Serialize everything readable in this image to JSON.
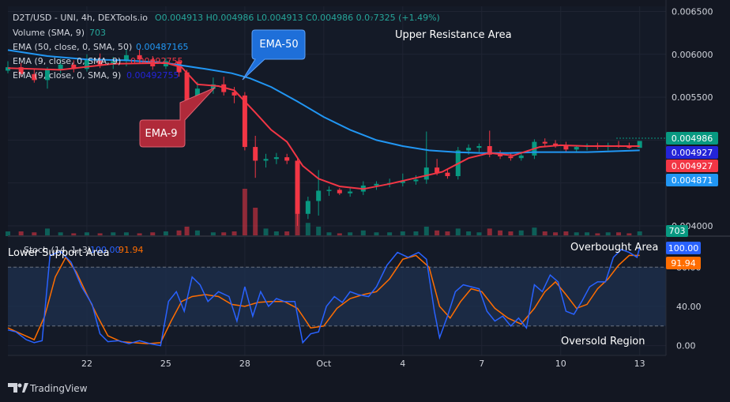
{
  "header": {
    "symbol": "D2T/USD - UNI, 4h, DEXTools.io",
    "ohlc": "O0.004913  H0.004986  L0.004913  C0.004986  0.0₇7325 (+1.49%)",
    "volume": "Volume (SMA, 9)",
    "volume_val": "703",
    "ema50": "EMA (50, close, 0, SMA, 50)",
    "ema50_val": "0.00487165",
    "ema9a": "EMA (9, close, 0, SMA, 9)",
    "ema9a_val": "0.00492755",
    "ema9b": "EMA (9, close, 0, SMA, 9)",
    "ema9b_val": "0.00492755"
  },
  "annotations": {
    "ema50": "EMA-50",
    "ema9": "EMA-9",
    "upper": "Upper Resistance Area",
    "lower": "Lower Support Area",
    "overbought": "Overbought Area",
    "oversold": "Oversold Region"
  },
  "stoch_header": {
    "label": "Stoch (14, 1, 3)",
    "k": "100.00",
    "d": "91.94"
  },
  "price_badges": [
    {
      "text": "0.004986",
      "value": 0.004986,
      "color": "#089981"
    },
    {
      "text": "0.004927",
      "value": 0.004927,
      "color": "#2424d8"
    },
    {
      "text": "0.004927",
      "value": 0.004927,
      "color": "#f23645"
    },
    {
      "text": "0.004871",
      "value": 0.004871,
      "color": "#2196f3"
    }
  ],
  "volume_badge": {
    "text": "703",
    "color": "#089981"
  },
  "stoch_badges": [
    {
      "text": "100.00",
      "value": 100,
      "color": "#2962ff"
    },
    {
      "text": "91.94",
      "value": 91.94,
      "color": "#ff6d00"
    }
  ],
  "brand": "TradingView",
  "colors": {
    "up": "#089981",
    "down": "#f23645",
    "ema9": "#f23645",
    "ema50": "#2196f3",
    "stochK": "#2962ff",
    "stochD": "#ff6d00"
  },
  "chart_data": {
    "type": "line",
    "price_axis": {
      "ticks": [
        0.0065,
        0.006,
        0.0055,
        0.005,
        0.0045,
        0.004
      ],
      "labels": [
        "0.006500",
        "0.006000",
        "0.005500",
        "0.005000",
        "0.004500",
        "0.004000"
      ],
      "min": 0.00388,
      "max": 0.00656
    },
    "stoch_axis": {
      "ticks": [
        80,
        40,
        0
      ],
      "labels": [
        "80.00",
        "40.00",
        "0.00"
      ],
      "bands": [
        80,
        20
      ],
      "min": -10,
      "max": 110
    },
    "x_axis": {
      "min": 19,
      "max": 44,
      "ticks": [
        22,
        25,
        28,
        31,
        34,
        37,
        40,
        43
      ],
      "labels": [
        "22",
        "25",
        "28",
        "Oct",
        "4",
        "7",
        "10",
        "13"
      ]
    },
    "candles": [
      {
        "d": 19.0,
        "o": 0.00581,
        "h": 0.00592,
        "l": 0.00578,
        "c": 0.00585,
        "v": 0.05
      },
      {
        "d": 19.5,
        "o": 0.00585,
        "h": 0.0059,
        "l": 0.00574,
        "c": 0.00577,
        "v": 0.05
      },
      {
        "d": 20.0,
        "o": 0.00577,
        "h": 0.00583,
        "l": 0.00567,
        "c": 0.0057,
        "v": 0.04
      },
      {
        "d": 20.5,
        "o": 0.0057,
        "h": 0.00585,
        "l": 0.0056,
        "c": 0.00582,
        "v": 0.08
      },
      {
        "d": 21.0,
        "o": 0.00582,
        "h": 0.00595,
        "l": 0.00578,
        "c": 0.00588,
        "v": 0.04
      },
      {
        "d": 21.5,
        "o": 0.00588,
        "h": 0.00593,
        "l": 0.00579,
        "c": 0.00583,
        "v": 0.03
      },
      {
        "d": 22.0,
        "o": 0.00583,
        "h": 0.006,
        "l": 0.0058,
        "c": 0.00594,
        "v": 0.04
      },
      {
        "d": 22.5,
        "o": 0.00594,
        "h": 0.00601,
        "l": 0.00584,
        "c": 0.00588,
        "v": 0.03
      },
      {
        "d": 23.0,
        "o": 0.00588,
        "h": 0.00597,
        "l": 0.00583,
        "c": 0.00592,
        "v": 0.04
      },
      {
        "d": 23.5,
        "o": 0.00592,
        "h": 0.00606,
        "l": 0.00586,
        "c": 0.00599,
        "v": 0.04
      },
      {
        "d": 24.0,
        "o": 0.00599,
        "h": 0.00606,
        "l": 0.0059,
        "c": 0.00594,
        "v": 0.03
      },
      {
        "d": 24.5,
        "o": 0.00594,
        "h": 0.00598,
        "l": 0.00582,
        "c": 0.00586,
        "v": 0.04
      },
      {
        "d": 25.0,
        "o": 0.00586,
        "h": 0.00596,
        "l": 0.00583,
        "c": 0.00592,
        "v": 0.05
      },
      {
        "d": 25.5,
        "o": 0.00592,
        "h": 0.00594,
        "l": 0.00574,
        "c": 0.00579,
        "v": 0.06
      },
      {
        "d": 25.8,
        "o": 0.00579,
        "h": 0.00582,
        "l": 0.00532,
        "c": 0.00545,
        "v": 0.1
      },
      {
        "d": 26.2,
        "o": 0.00545,
        "h": 0.00568,
        "l": 0.00541,
        "c": 0.0056,
        "v": 0.06
      },
      {
        "d": 26.8,
        "o": 0.0056,
        "h": 0.00573,
        "l": 0.00554,
        "c": 0.00565,
        "v": 0.04
      },
      {
        "d": 27.2,
        "o": 0.00565,
        "h": 0.00574,
        "l": 0.00552,
        "c": 0.00556,
        "v": 0.04
      },
      {
        "d": 27.6,
        "o": 0.00556,
        "h": 0.00562,
        "l": 0.00543,
        "c": 0.00552,
        "v": 0.05
      },
      {
        "d": 28.0,
        "o": 0.00552,
        "h": 0.00556,
        "l": 0.00488,
        "c": 0.00492,
        "v": 0.5
      },
      {
        "d": 28.4,
        "o": 0.00492,
        "h": 0.00505,
        "l": 0.00456,
        "c": 0.00476,
        "v": 0.3
      },
      {
        "d": 28.8,
        "o": 0.00476,
        "h": 0.00484,
        "l": 0.00468,
        "c": 0.00478,
        "v": 0.08
      },
      {
        "d": 29.2,
        "o": 0.00478,
        "h": 0.00485,
        "l": 0.00472,
        "c": 0.0048,
        "v": 0.05
      },
      {
        "d": 29.6,
        "o": 0.0048,
        "h": 0.00484,
        "l": 0.00472,
        "c": 0.00476,
        "v": 0.05
      },
      {
        "d": 30.0,
        "o": 0.00476,
        "h": 0.0048,
        "l": 0.004,
        "c": 0.00414,
        "v": 0.42
      },
      {
        "d": 30.4,
        "o": 0.00414,
        "h": 0.00434,
        "l": 0.00408,
        "c": 0.00429,
        "v": 0.14
      },
      {
        "d": 30.8,
        "o": 0.00429,
        "h": 0.00465,
        "l": 0.00412,
        "c": 0.00441,
        "v": 0.1
      },
      {
        "d": 31.2,
        "o": 0.00441,
        "h": 0.00446,
        "l": 0.00435,
        "c": 0.00442,
        "v": 0.04
      },
      {
        "d": 31.6,
        "o": 0.00442,
        "h": 0.00444,
        "l": 0.00436,
        "c": 0.00438,
        "v": 0.03
      },
      {
        "d": 32.0,
        "o": 0.00438,
        "h": 0.00444,
        "l": 0.00434,
        "c": 0.0044,
        "v": 0.04
      },
      {
        "d": 32.5,
        "o": 0.0044,
        "h": 0.00452,
        "l": 0.00436,
        "c": 0.00447,
        "v": 0.06
      },
      {
        "d": 33.0,
        "o": 0.00447,
        "h": 0.00452,
        "l": 0.00442,
        "c": 0.00449,
        "v": 0.04
      },
      {
        "d": 33.5,
        "o": 0.00449,
        "h": 0.00455,
        "l": 0.00445,
        "c": 0.0045,
        "v": 0.04
      },
      {
        "d": 34.0,
        "o": 0.0045,
        "h": 0.00461,
        "l": 0.00446,
        "c": 0.00452,
        "v": 0.05
      },
      {
        "d": 34.5,
        "o": 0.00452,
        "h": 0.00459,
        "l": 0.00448,
        "c": 0.00454,
        "v": 0.05
      },
      {
        "d": 34.9,
        "o": 0.00454,
        "h": 0.0051,
        "l": 0.00449,
        "c": 0.00468,
        "v": 0.1
      },
      {
        "d": 35.3,
        "o": 0.00468,
        "h": 0.00478,
        "l": 0.00459,
        "c": 0.00462,
        "v": 0.06
      },
      {
        "d": 35.7,
        "o": 0.00462,
        "h": 0.00466,
        "l": 0.00455,
        "c": 0.00458,
        "v": 0.05
      },
      {
        "d": 36.1,
        "o": 0.00458,
        "h": 0.00492,
        "l": 0.00454,
        "c": 0.00488,
        "v": 0.08
      },
      {
        "d": 36.5,
        "o": 0.00488,
        "h": 0.00495,
        "l": 0.00483,
        "c": 0.00491,
        "v": 0.05
      },
      {
        "d": 36.9,
        "o": 0.00491,
        "h": 0.00496,
        "l": 0.00486,
        "c": 0.00493,
        "v": 0.04
      },
      {
        "d": 37.3,
        "o": 0.00493,
        "h": 0.00511,
        "l": 0.0048,
        "c": 0.00483,
        "v": 0.08
      },
      {
        "d": 37.7,
        "o": 0.00483,
        "h": 0.00488,
        "l": 0.00478,
        "c": 0.00481,
        "v": 0.06
      },
      {
        "d": 38.1,
        "o": 0.00481,
        "h": 0.00485,
        "l": 0.00476,
        "c": 0.00479,
        "v": 0.05
      },
      {
        "d": 38.5,
        "o": 0.00479,
        "h": 0.00486,
        "l": 0.00476,
        "c": 0.00482,
        "v": 0.06
      },
      {
        "d": 39.0,
        "o": 0.00482,
        "h": 0.00501,
        "l": 0.00478,
        "c": 0.00498,
        "v": 0.09
      },
      {
        "d": 39.4,
        "o": 0.00498,
        "h": 0.00502,
        "l": 0.00492,
        "c": 0.00496,
        "v": 0.05
      },
      {
        "d": 39.8,
        "o": 0.00496,
        "h": 0.005,
        "l": 0.00491,
        "c": 0.00494,
        "v": 0.04
      },
      {
        "d": 40.2,
        "o": 0.00494,
        "h": 0.00498,
        "l": 0.00486,
        "c": 0.00489,
        "v": 0.05
      },
      {
        "d": 40.6,
        "o": 0.00489,
        "h": 0.00494,
        "l": 0.00486,
        "c": 0.00492,
        "v": 0.04
      },
      {
        "d": 41.0,
        "o": 0.00492,
        "h": 0.00496,
        "l": 0.00488,
        "c": 0.00494,
        "v": 0.04
      },
      {
        "d": 41.4,
        "o": 0.00494,
        "h": 0.00497,
        "l": 0.00489,
        "c": 0.00492,
        "v": 0.03
      },
      {
        "d": 41.8,
        "o": 0.00492,
        "h": 0.00497,
        "l": 0.00488,
        "c": 0.00494,
        "v": 0.04
      },
      {
        "d": 42.2,
        "o": 0.00494,
        "h": 0.00499,
        "l": 0.00491,
        "c": 0.00493,
        "v": 0.04
      },
      {
        "d": 42.6,
        "o": 0.00493,
        "h": 0.00497,
        "l": 0.0049,
        "c": 0.00491,
        "v": 0.03
      },
      {
        "d": 43.0,
        "o": 0.00491,
        "h": 0.00499,
        "l": 0.00491,
        "c": 0.00499,
        "v": 0.05
      }
    ],
    "ema9": [
      [
        19,
        0.00584
      ],
      [
        21,
        0.00582
      ],
      [
        23,
        0.00589
      ],
      [
        25,
        0.0059
      ],
      [
        25.6,
        0.00585
      ],
      [
        26.2,
        0.00565
      ],
      [
        27,
        0.00563
      ],
      [
        27.6,
        0.00558
      ],
      [
        28.4,
        0.00532
      ],
      [
        29,
        0.00512
      ],
      [
        29.6,
        0.00498
      ],
      [
        30.2,
        0.0047
      ],
      [
        30.8,
        0.00455
      ],
      [
        31.6,
        0.00446
      ],
      [
        32.5,
        0.00443
      ],
      [
        33.5,
        0.00449
      ],
      [
        34.5,
        0.00456
      ],
      [
        35.5,
        0.00463
      ],
      [
        36.5,
        0.00479
      ],
      [
        37.3,
        0.00485
      ],
      [
        38.2,
        0.00482
      ],
      [
        39.2,
        0.00492
      ],
      [
        40,
        0.00494
      ],
      [
        41,
        0.00493
      ],
      [
        42,
        0.00493
      ],
      [
        43,
        0.00493
      ]
    ],
    "ema50": [
      [
        19,
        0.00605
      ],
      [
        20.5,
        0.00598
      ],
      [
        22,
        0.00594
      ],
      [
        23.5,
        0.00593
      ],
      [
        25,
        0.0059
      ],
      [
        26.5,
        0.00583
      ],
      [
        27.5,
        0.00578
      ],
      [
        28.2,
        0.00572
      ],
      [
        29,
        0.00562
      ],
      [
        30,
        0.00545
      ],
      [
        31,
        0.00527
      ],
      [
        32,
        0.00512
      ],
      [
        33,
        0.005
      ],
      [
        34,
        0.00493
      ],
      [
        35,
        0.00488
      ],
      [
        36,
        0.00486
      ],
      [
        37,
        0.00485
      ],
      [
        38,
        0.00485
      ],
      [
        39,
        0.00486
      ],
      [
        40,
        0.00486
      ],
      [
        41,
        0.00486
      ],
      [
        42,
        0.00487
      ],
      [
        43,
        0.00488
      ]
    ],
    "stoch_k": [
      [
        19,
        16
      ],
      [
        19.3,
        14
      ],
      [
        19.7,
        6
      ],
      [
        20,
        3
      ],
      [
        20.3,
        5
      ],
      [
        20.6,
        92
      ],
      [
        21,
        96
      ],
      [
        21.4,
        85
      ],
      [
        21.8,
        60
      ],
      [
        22.2,
        42
      ],
      [
        22.5,
        12
      ],
      [
        22.8,
        4
      ],
      [
        23.2,
        5
      ],
      [
        23.6,
        2
      ],
      [
        24,
        5
      ],
      [
        24.4,
        2
      ],
      [
        24.8,
        0
      ],
      [
        25.1,
        45
      ],
      [
        25.4,
        55
      ],
      [
        25.7,
        35
      ],
      [
        26,
        70
      ],
      [
        26.3,
        62
      ],
      [
        26.6,
        45
      ],
      [
        27,
        55
      ],
      [
        27.4,
        50
      ],
      [
        27.7,
        25
      ],
      [
        28,
        60
      ],
      [
        28.3,
        30
      ],
      [
        28.6,
        55
      ],
      [
        28.9,
        40
      ],
      [
        29.2,
        48
      ],
      [
        29.5,
        45
      ],
      [
        29.9,
        45
      ],
      [
        30.2,
        3
      ],
      [
        30.5,
        12
      ],
      [
        30.8,
        14
      ],
      [
        31.1,
        40
      ],
      [
        31.4,
        50
      ],
      [
        31.7,
        44
      ],
      [
        32,
        55
      ],
      [
        32.3,
        52
      ],
      [
        32.7,
        50
      ],
      [
        33,
        60
      ],
      [
        33.4,
        82
      ],
      [
        33.8,
        95
      ],
      [
        34.2,
        90
      ],
      [
        34.6,
        95
      ],
      [
        34.9,
        88
      ],
      [
        35.2,
        35
      ],
      [
        35.4,
        8
      ],
      [
        35.7,
        30
      ],
      [
        36,
        55
      ],
      [
        36.3,
        62
      ],
      [
        36.6,
        60
      ],
      [
        36.9,
        58
      ],
      [
        37.2,
        35
      ],
      [
        37.5,
        25
      ],
      [
        37.8,
        30
      ],
      [
        38.1,
        20
      ],
      [
        38.4,
        28
      ],
      [
        38.7,
        18
      ],
      [
        39,
        62
      ],
      [
        39.3,
        55
      ],
      [
        39.6,
        72
      ],
      [
        39.9,
        65
      ],
      [
        40.2,
        35
      ],
      [
        40.5,
        32
      ],
      [
        40.8,
        45
      ],
      [
        41.1,
        60
      ],
      [
        41.4,
        65
      ],
      [
        41.7,
        65
      ],
      [
        42,
        90
      ],
      [
        42.3,
        98
      ],
      [
        42.6,
        95
      ],
      [
        42.9,
        90
      ],
      [
        43,
        100
      ]
    ],
    "stoch_d": [
      [
        19,
        18
      ],
      [
        19.5,
        12
      ],
      [
        20,
        6
      ],
      [
        20.4,
        30
      ],
      [
        20.8,
        70
      ],
      [
        21.2,
        90
      ],
      [
        21.6,
        75
      ],
      [
        22,
        52
      ],
      [
        22.4,
        30
      ],
      [
        22.8,
        10
      ],
      [
        23.3,
        4
      ],
      [
        23.8,
        3
      ],
      [
        24.3,
        2
      ],
      [
        24.8,
        3
      ],
      [
        25.2,
        25
      ],
      [
        25.6,
        45
      ],
      [
        26,
        50
      ],
      [
        26.5,
        52
      ],
      [
        27,
        50
      ],
      [
        27.5,
        42
      ],
      [
        28,
        40
      ],
      [
        28.5,
        44
      ],
      [
        29,
        45
      ],
      [
        29.5,
        45
      ],
      [
        30,
        38
      ],
      [
        30.5,
        18
      ],
      [
        31,
        20
      ],
      [
        31.5,
        38
      ],
      [
        32,
        48
      ],
      [
        32.5,
        52
      ],
      [
        33,
        55
      ],
      [
        33.5,
        68
      ],
      [
        34,
        88
      ],
      [
        34.5,
        92
      ],
      [
        35,
        80
      ],
      [
        35.4,
        40
      ],
      [
        35.8,
        28
      ],
      [
        36.2,
        45
      ],
      [
        36.6,
        58
      ],
      [
        37,
        55
      ],
      [
        37.5,
        38
      ],
      [
        38,
        28
      ],
      [
        38.5,
        22
      ],
      [
        39,
        38
      ],
      [
        39.4,
        55
      ],
      [
        39.8,
        65
      ],
      [
        40.2,
        52
      ],
      [
        40.6,
        38
      ],
      [
        41,
        42
      ],
      [
        41.4,
        58
      ],
      [
        41.8,
        68
      ],
      [
        42.2,
        82
      ],
      [
        42.6,
        92
      ],
      [
        43,
        91.94
      ]
    ]
  }
}
